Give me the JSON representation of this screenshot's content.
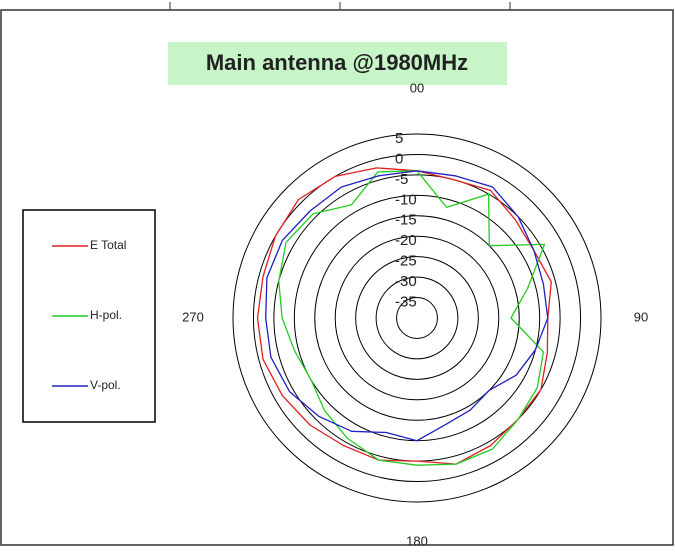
{
  "chart_data": {
    "type": "polar",
    "title": "Main antenna @1980MHz",
    "theta": [
      0,
      15,
      30,
      45,
      60,
      75,
      90,
      105,
      120,
      135,
      150,
      165,
      180,
      195,
      210,
      225,
      240,
      255,
      270,
      285,
      300,
      315,
      330,
      345
    ],
    "thetaticks": [
      {
        "value": 0,
        "label": "00"
      },
      90,
      180,
      270
    ],
    "rlim": [
      -40,
      5
    ],
    "rticks": [
      -35,
      -30,
      -25,
      -20,
      -15,
      -10,
      -5,
      0,
      5
    ],
    "series": [
      {
        "name": "E Total",
        "color": "#e02020",
        "values": [
          -4,
          -5,
          -4,
          -6,
          -7,
          -6,
          -8,
          -7,
          -5,
          -5,
          -4,
          -3,
          -5,
          -4,
          -4,
          -3,
          -2,
          -1,
          -1,
          -1,
          0,
          1,
          0,
          -2
        ]
      },
      {
        "name": "H-pol.",
        "color": "#22cc22",
        "values": [
          -4,
          -12,
          -5,
          -15,
          -4,
          -12,
          -17,
          -8,
          -6,
          -5,
          -3,
          -3,
          -4,
          -4,
          -6,
          -8,
          -10,
          -9,
          -7,
          -5,
          -3,
          -4,
          -8,
          -3
        ]
      },
      {
        "name": "V-pol.",
        "color": "#2020c0",
        "values": [
          -4,
          -4,
          -3,
          -5,
          -7,
          -8,
          -8,
          -10,
          -12,
          -15,
          -14,
          -13,
          -10,
          -11,
          -8,
          -6,
          -4,
          -3,
          -3,
          -2,
          -2,
          -3,
          -3,
          -4
        ]
      }
    ]
  }
}
